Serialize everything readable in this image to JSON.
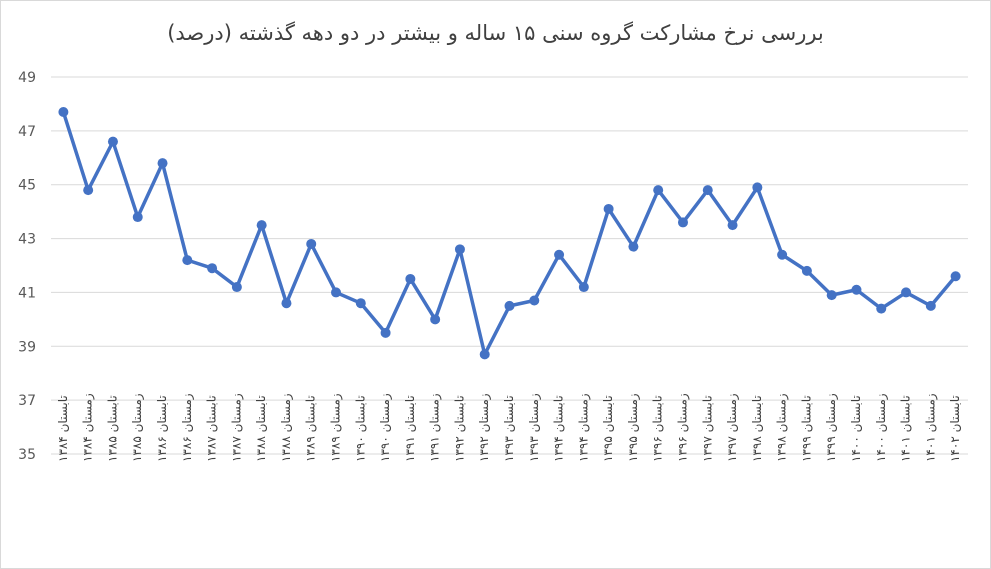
{
  "chart_data": {
    "type": "line",
    "title": "بررسی نرخ مشارکت گروه سنی ۱۵ ساله و بیشتر در دو دهه گذشته (درصد)",
    "xlabel": "",
    "ylabel": "",
    "ylim": [
      35,
      49
    ],
    "yticks": [
      35,
      37,
      39,
      41,
      43,
      45,
      47,
      49
    ],
    "grid": true,
    "legend": "none",
    "color": "#4472C4",
    "categories": [
      "تابستان ۱۳۸۴",
      "زمستان ۱۳۸۴",
      "تابستان ۱۳۸۵",
      "زمستان ۱۳۸۵",
      "تابستان ۱۳۸۶",
      "زمستان ۱۳۸۶",
      "تابستان ۱۳۸۷",
      "زمستان ۱۳۸۷",
      "تابستان ۱۳۸۸",
      "زمستان ۱۳۸۸",
      "تابستان ۱۳۸۹",
      "زمستان ۱۳۸۹",
      "تابستان ۱۳۹۰",
      "زمستان ۱۳۹۰",
      "تابستان ۱۳۹۱",
      "زمستان ۱۳۹۱",
      "تابستان ۱۳۹۲",
      "زمستان ۱۳۹۲",
      "تابستان ۱۳۹۳",
      "زمستان ۱۳۹۳",
      "تابستان ۱۳۹۴",
      "زمستان ۱۳۹۴",
      "تابستان ۱۳۹۵",
      "زمستان ۱۳۹۵",
      "تابستان ۱۳۹۶",
      "زمستان ۱۳۹۶",
      "تابستان ۱۳۹۷",
      "زمستان ۱۳۹۷",
      "تابستان ۱۳۹۸",
      "زمستان ۱۳۹۸",
      "تابستان ۱۳۹۹",
      "زمستان ۱۳۹۹",
      "تابستان ۱۴۰۰",
      "زمستان ۱۴۰۰",
      "تابستان ۱۴۰۱",
      "زمستان ۱۴۰۱",
      "تابستان ۱۴۰۲"
    ],
    "values": [
      47.7,
      44.8,
      46.6,
      43.8,
      45.8,
      42.2,
      41.9,
      41.2,
      43.5,
      40.6,
      42.8,
      41.0,
      40.6,
      39.5,
      41.5,
      40.0,
      42.6,
      38.7,
      40.5,
      40.7,
      42.4,
      41.2,
      44.1,
      42.7,
      44.8,
      43.6,
      44.8,
      43.5,
      44.9,
      42.4,
      41.8,
      40.9,
      41.1,
      40.4,
      41.0,
      40.5,
      41.6
    ]
  }
}
